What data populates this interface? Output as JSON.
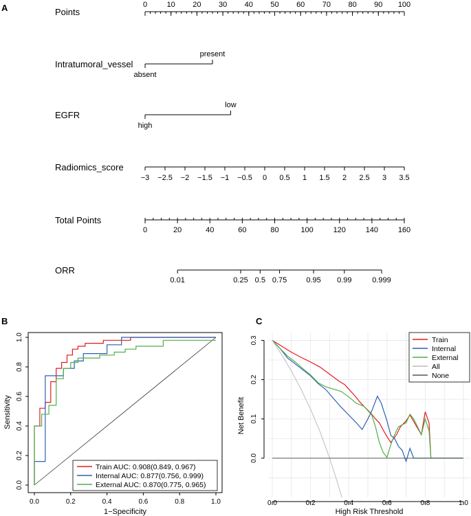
{
  "chart_data": [
    {
      "type": "nomogram",
      "panel_label": "A",
      "rows": [
        {
          "name": "Points",
          "ticks": [
            "0",
            "10",
            "20",
            "30",
            "40",
            "50",
            "60",
            "70",
            "80",
            "90",
            "100"
          ],
          "minor_ticks": 50
        },
        {
          "name": "Intratumoral_vessel",
          "levels": [
            {
              "label": "absent",
              "points": 0
            },
            {
              "label": "present",
              "points": 26
            }
          ]
        },
        {
          "name": "EGFR",
          "levels": [
            {
              "label": "high",
              "points": 0
            },
            {
              "label": "low",
              "points": 33
            }
          ]
        },
        {
          "name": "Radiomics_score",
          "ticks": [
            "−3",
            "−2.5",
            "−2",
            "−1.5",
            "−1",
            "−0.5",
            "0",
            "0.5",
            "1",
            "1.5",
            "2",
            "2.5",
            "3",
            "3.5"
          ],
          "range": [
            -3,
            3.5
          ]
        },
        {
          "name": "Total Points",
          "ticks": [
            "0",
            "20",
            "40",
            "60",
            "80",
            "100",
            "120",
            "140",
            "160"
          ],
          "range": [
            0,
            160
          ],
          "minor_ticks": 32
        },
        {
          "name": "ORR",
          "ticks": [
            "0.01",
            "0.25",
            "0.5",
            "0.75",
            "0.95",
            "0.99",
            "0.999"
          ],
          "total_points_at_ticks": [
            20,
            59,
            71,
            83,
            104,
            123,
            146
          ]
        }
      ]
    },
    {
      "type": "line",
      "panel_label": "B",
      "subtype": "roc",
      "xlabel": "1−Specificity",
      "ylabel": "Sensitivity",
      "xlim": [
        0,
        1
      ],
      "ylim": [
        0,
        1
      ],
      "xticks": [
        "0.0",
        "0.2",
        "0.4",
        "0.6",
        "0.8",
        "1.0"
      ],
      "yticks": [
        "0.0",
        "0.2",
        "0.4",
        "0.6",
        "0.8",
        "1.0"
      ],
      "reference_line": true,
      "legend_position": "bottom-right",
      "series": [
        {
          "name": "Train AUC: 0.908(0.849, 0.967)",
          "color": "#e41a1c",
          "points": [
            [
              0,
              0
            ],
            [
              0,
              0.4
            ],
            [
              0.03,
              0.4
            ],
            [
              0.03,
              0.52
            ],
            [
              0.06,
              0.52
            ],
            [
              0.06,
              0.56
            ],
            [
              0.09,
              0.56
            ],
            [
              0.09,
              0.7
            ],
            [
              0.12,
              0.7
            ],
            [
              0.12,
              0.79
            ],
            [
              0.15,
              0.79
            ],
            [
              0.15,
              0.83
            ],
            [
              0.18,
              0.83
            ],
            [
              0.18,
              0.88
            ],
            [
              0.21,
              0.88
            ],
            [
              0.21,
              0.92
            ],
            [
              0.24,
              0.92
            ],
            [
              0.24,
              0.94
            ],
            [
              0.28,
              0.94
            ],
            [
              0.28,
              0.96
            ],
            [
              0.38,
              0.96
            ],
            [
              0.38,
              0.98
            ],
            [
              0.53,
              0.98
            ],
            [
              0.53,
              1.0
            ],
            [
              1,
              1
            ]
          ]
        },
        {
          "name": "Internal AUC: 0.877(0.756, 0.999)",
          "color": "#2c5fb4",
          "points": [
            [
              0,
              0
            ],
            [
              0,
              0.16
            ],
            [
              0.06,
              0.16
            ],
            [
              0.06,
              0.74
            ],
            [
              0.16,
              0.74
            ],
            [
              0.16,
              0.79
            ],
            [
              0.22,
              0.79
            ],
            [
              0.22,
              0.84
            ],
            [
              0.27,
              0.84
            ],
            [
              0.27,
              0.89
            ],
            [
              0.4,
              0.89
            ],
            [
              0.4,
              0.95
            ],
            [
              0.48,
              0.95
            ],
            [
              0.48,
              1.0
            ],
            [
              1,
              1
            ]
          ]
        },
        {
          "name": "External AUC: 0.870(0.775, 0.965)",
          "color": "#4daf4a",
          "points": [
            [
              0,
              0
            ],
            [
              0,
              0.4
            ],
            [
              0.04,
              0.4
            ],
            [
              0.04,
              0.48
            ],
            [
              0.08,
              0.48
            ],
            [
              0.08,
              0.54
            ],
            [
              0.12,
              0.54
            ],
            [
              0.12,
              0.72
            ],
            [
              0.16,
              0.72
            ],
            [
              0.16,
              0.79
            ],
            [
              0.2,
              0.79
            ],
            [
              0.2,
              0.83
            ],
            [
              0.24,
              0.83
            ],
            [
              0.24,
              0.86
            ],
            [
              0.36,
              0.86
            ],
            [
              0.36,
              0.88
            ],
            [
              0.44,
              0.88
            ],
            [
              0.44,
              0.9
            ],
            [
              0.5,
              0.9
            ],
            [
              0.5,
              0.92
            ],
            [
              0.56,
              0.92
            ],
            [
              0.56,
              0.94
            ],
            [
              0.71,
              0.94
            ],
            [
              0.71,
              0.98
            ],
            [
              1,
              0.98
            ]
          ]
        }
      ]
    },
    {
      "type": "line",
      "panel_label": "C",
      "subtype": "decision_curve",
      "xlabel": "High Risk Threshold",
      "ylabel": "Net Benefit",
      "xlim": [
        0,
        1
      ],
      "ylim": [
        -0.1,
        0.32
      ],
      "xticks": [
        "0.0",
        "0.2",
        "0.4",
        "0.6",
        "0.8",
        "1.0"
      ],
      "yticks": [
        "0.0",
        "0.1",
        "0.2",
        "0.3"
      ],
      "grid": true,
      "legend_position": "top-right",
      "series": [
        {
          "name": "Train",
          "color": "#e41a1c",
          "points": [
            [
              0,
              0.3
            ],
            [
              0.05,
              0.285
            ],
            [
              0.1,
              0.27
            ],
            [
              0.15,
              0.257
            ],
            [
              0.2,
              0.245
            ],
            [
              0.25,
              0.232
            ],
            [
              0.3,
              0.214
            ],
            [
              0.35,
              0.196
            ],
            [
              0.38,
              0.187
            ],
            [
              0.4,
              0.176
            ],
            [
              0.43,
              0.16
            ],
            [
              0.46,
              0.142
            ],
            [
              0.48,
              0.132
            ],
            [
              0.5,
              0.122
            ],
            [
              0.52,
              0.112
            ],
            [
              0.54,
              0.1
            ],
            [
              0.56,
              0.09
            ],
            [
              0.58,
              0.072
            ],
            [
              0.6,
              0.055
            ],
            [
              0.62,
              0.04
            ],
            [
              0.65,
              0.06
            ],
            [
              0.67,
              0.08
            ],
            [
              0.7,
              0.095
            ],
            [
              0.72,
              0.11
            ],
            [
              0.75,
              0.085
            ],
            [
              0.78,
              0.06
            ],
            [
              0.8,
              0.118
            ],
            [
              0.82,
              0.09
            ],
            [
              0.83,
              0
            ],
            [
              1,
              0
            ]
          ]
        },
        {
          "name": "Internal",
          "color": "#2c5fb4",
          "points": [
            [
              0,
              0.3
            ],
            [
              0.04,
              0.28
            ],
            [
              0.08,
              0.255
            ],
            [
              0.12,
              0.24
            ],
            [
              0.16,
              0.225
            ],
            [
              0.2,
              0.21
            ],
            [
              0.24,
              0.19
            ],
            [
              0.28,
              0.175
            ],
            [
              0.32,
              0.152
            ],
            [
              0.36,
              0.13
            ],
            [
              0.4,
              0.11
            ],
            [
              0.44,
              0.09
            ],
            [
              0.47,
              0.073
            ],
            [
              0.5,
              0.1
            ],
            [
              0.52,
              0.12
            ],
            [
              0.55,
              0.158
            ],
            [
              0.57,
              0.14
            ],
            [
              0.6,
              0.095
            ],
            [
              0.62,
              0.058
            ],
            [
              0.64,
              0.05
            ],
            [
              0.66,
              0.03
            ],
            [
              0.68,
              0.02
            ],
            [
              0.7,
              -0.008
            ],
            [
              0.72,
              0.025
            ],
            [
              0.74,
              0
            ],
            [
              1,
              0
            ]
          ]
        },
        {
          "name": "External",
          "color": "#4daf4a",
          "points": [
            [
              0,
              0.3
            ],
            [
              0.04,
              0.28
            ],
            [
              0.08,
              0.26
            ],
            [
              0.12,
              0.245
            ],
            [
              0.16,
              0.228
            ],
            [
              0.2,
              0.212
            ],
            [
              0.24,
              0.192
            ],
            [
              0.28,
              0.182
            ],
            [
              0.32,
              0.176
            ],
            [
              0.36,
              0.17
            ],
            [
              0.4,
              0.156
            ],
            [
              0.44,
              0.14
            ],
            [
              0.48,
              0.132
            ],
            [
              0.52,
              0.11
            ],
            [
              0.54,
              0.08
            ],
            [
              0.56,
              0.04
            ],
            [
              0.58,
              0.015
            ],
            [
              0.6,
              0.002
            ],
            [
              0.62,
              0.035
            ],
            [
              0.64,
              0.06
            ],
            [
              0.66,
              0.08
            ],
            [
              0.68,
              0.085
            ],
            [
              0.7,
              0.09
            ],
            [
              0.72,
              0.112
            ],
            [
              0.74,
              0.1
            ],
            [
              0.76,
              0.08
            ],
            [
              0.78,
              0.06
            ],
            [
              0.8,
              0.1
            ],
            [
              0.82,
              0.07
            ],
            [
              0.83,
              0
            ],
            [
              1,
              0
            ]
          ]
        },
        {
          "name": "All",
          "color": "#bbbbbb",
          "points": [
            [
              0,
              0.3
            ],
            [
              0.05,
              0.263
            ],
            [
              0.1,
              0.222
            ],
            [
              0.15,
              0.176
            ],
            [
              0.2,
              0.125
            ],
            [
              0.25,
              0.067
            ],
            [
              0.3,
              0
            ],
            [
              0.33,
              -0.045
            ],
            [
              0.35,
              -0.077
            ],
            [
              0.364,
              -0.1
            ]
          ]
        },
        {
          "name": "None",
          "color": "#555555",
          "points": [
            [
              0,
              0
            ],
            [
              1,
              0
            ]
          ]
        }
      ]
    }
  ]
}
